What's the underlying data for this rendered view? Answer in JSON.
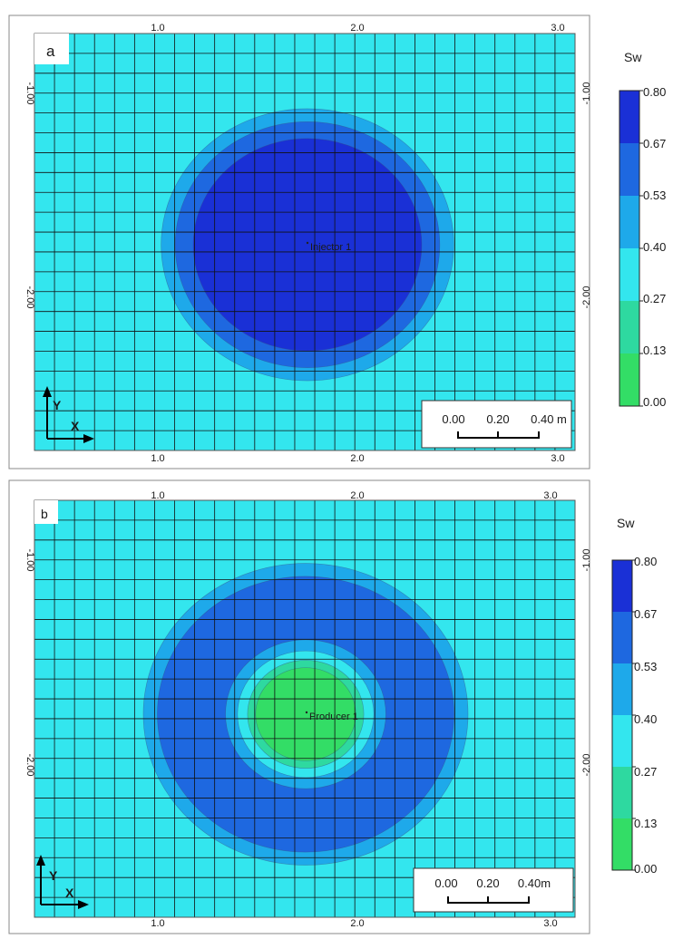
{
  "chart_data": [
    {
      "type": "heatmap",
      "panel_label": "a",
      "well_label": "Injector 1",
      "x_ticks": [
        "1.0",
        "2.0",
        "3.0"
      ],
      "y_ticks": [
        "-1.00",
        "-2.00"
      ],
      "legend_title": "Sw",
      "legend_values": [
        "0.80",
        "0.67",
        "0.53",
        "0.40",
        "0.27",
        "0.13",
        "0.00"
      ],
      "scale_ticks": [
        "0.00",
        "0.20",
        "0.40 m"
      ],
      "axis_x": "X",
      "axis_y": "Y",
      "background_level": 0.33,
      "contours": [
        {
          "level": 0.47,
          "radius": 0.73
        },
        {
          "level": 0.6,
          "radius": 0.66
        },
        {
          "level": 0.74,
          "radius": 0.57
        }
      ]
    },
    {
      "type": "heatmap",
      "panel_label": "b",
      "well_label": "Producer 1",
      "x_ticks": [
        "1.0",
        "2.0",
        "3.0"
      ],
      "y_ticks": [
        "-1.00",
        "-2.00"
      ],
      "legend_title": "Sw",
      "legend_values": [
        "0.80",
        "0.67",
        "0.53",
        "0.40",
        "0.27",
        "0.13",
        "0.00"
      ],
      "scale_ticks": [
        "0.00",
        "0.20",
        "0.40m"
      ],
      "axis_x": "X",
      "axis_y": "Y",
      "background_level": 0.33,
      "contours": [
        {
          "level": 0.47,
          "radius": 0.81
        },
        {
          "level": 0.6,
          "radius": 0.74
        },
        {
          "level": 0.47,
          "radius": 0.4
        },
        {
          "level": 0.33,
          "radius": 0.34
        },
        {
          "level": 0.2,
          "radius": 0.29
        },
        {
          "level": 0.07,
          "radius": 0.25
        }
      ]
    }
  ],
  "colors": {
    "level_0.00_0.13": "#33dd66",
    "level_0.13_0.27": "#2ed9a0",
    "level_0.27_0.40": "#33e6ee",
    "level_0.40_0.53": "#1ea9ea",
    "level_0.53_0.67": "#1e68e0",
    "level_0.67_0.80": "#1a30d6"
  }
}
